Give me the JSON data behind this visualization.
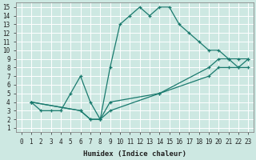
{
  "xlabel": "Humidex (Indice chaleur)",
  "bg_color": "#cde8e2",
  "grid_color": "#b0d8d0",
  "line_color": "#1a7a6e",
  "xlim": [
    -0.5,
    23.5
  ],
  "ylim": [
    0.5,
    15.5
  ],
  "xticks": [
    0,
    1,
    2,
    3,
    4,
    5,
    6,
    7,
    8,
    9,
    10,
    11,
    12,
    13,
    14,
    15,
    16,
    17,
    18,
    19,
    20,
    21,
    22,
    23
  ],
  "yticks": [
    1,
    2,
    3,
    4,
    5,
    6,
    7,
    8,
    9,
    10,
    11,
    12,
    13,
    14,
    15
  ],
  "line1_x": [
    1,
    2,
    3,
    4,
    5,
    6,
    7,
    8,
    9,
    10,
    11,
    12,
    13,
    14,
    15,
    16,
    17,
    18,
    19,
    20,
    21,
    22,
    23
  ],
  "line1_y": [
    4,
    3,
    3,
    3,
    5,
    7,
    4,
    2,
    8,
    13,
    14,
    15,
    14,
    15,
    15,
    13,
    12,
    11,
    10,
    10,
    9,
    9,
    9
  ],
  "line2_x": [
    1,
    6,
    7,
    8,
    9,
    14,
    19,
    20,
    21,
    22,
    23
  ],
  "line2_y": [
    4,
    3,
    2,
    2,
    4,
    5,
    8,
    9,
    9,
    8,
    9
  ],
  "line3_x": [
    1,
    6,
    7,
    8,
    9,
    14,
    19,
    20,
    21,
    22,
    23
  ],
  "line3_y": [
    4,
    3,
    2,
    2,
    3,
    5,
    7,
    8,
    8,
    8,
    8
  ],
  "figsize": [
    3.2,
    2.0
  ],
  "dpi": 100
}
